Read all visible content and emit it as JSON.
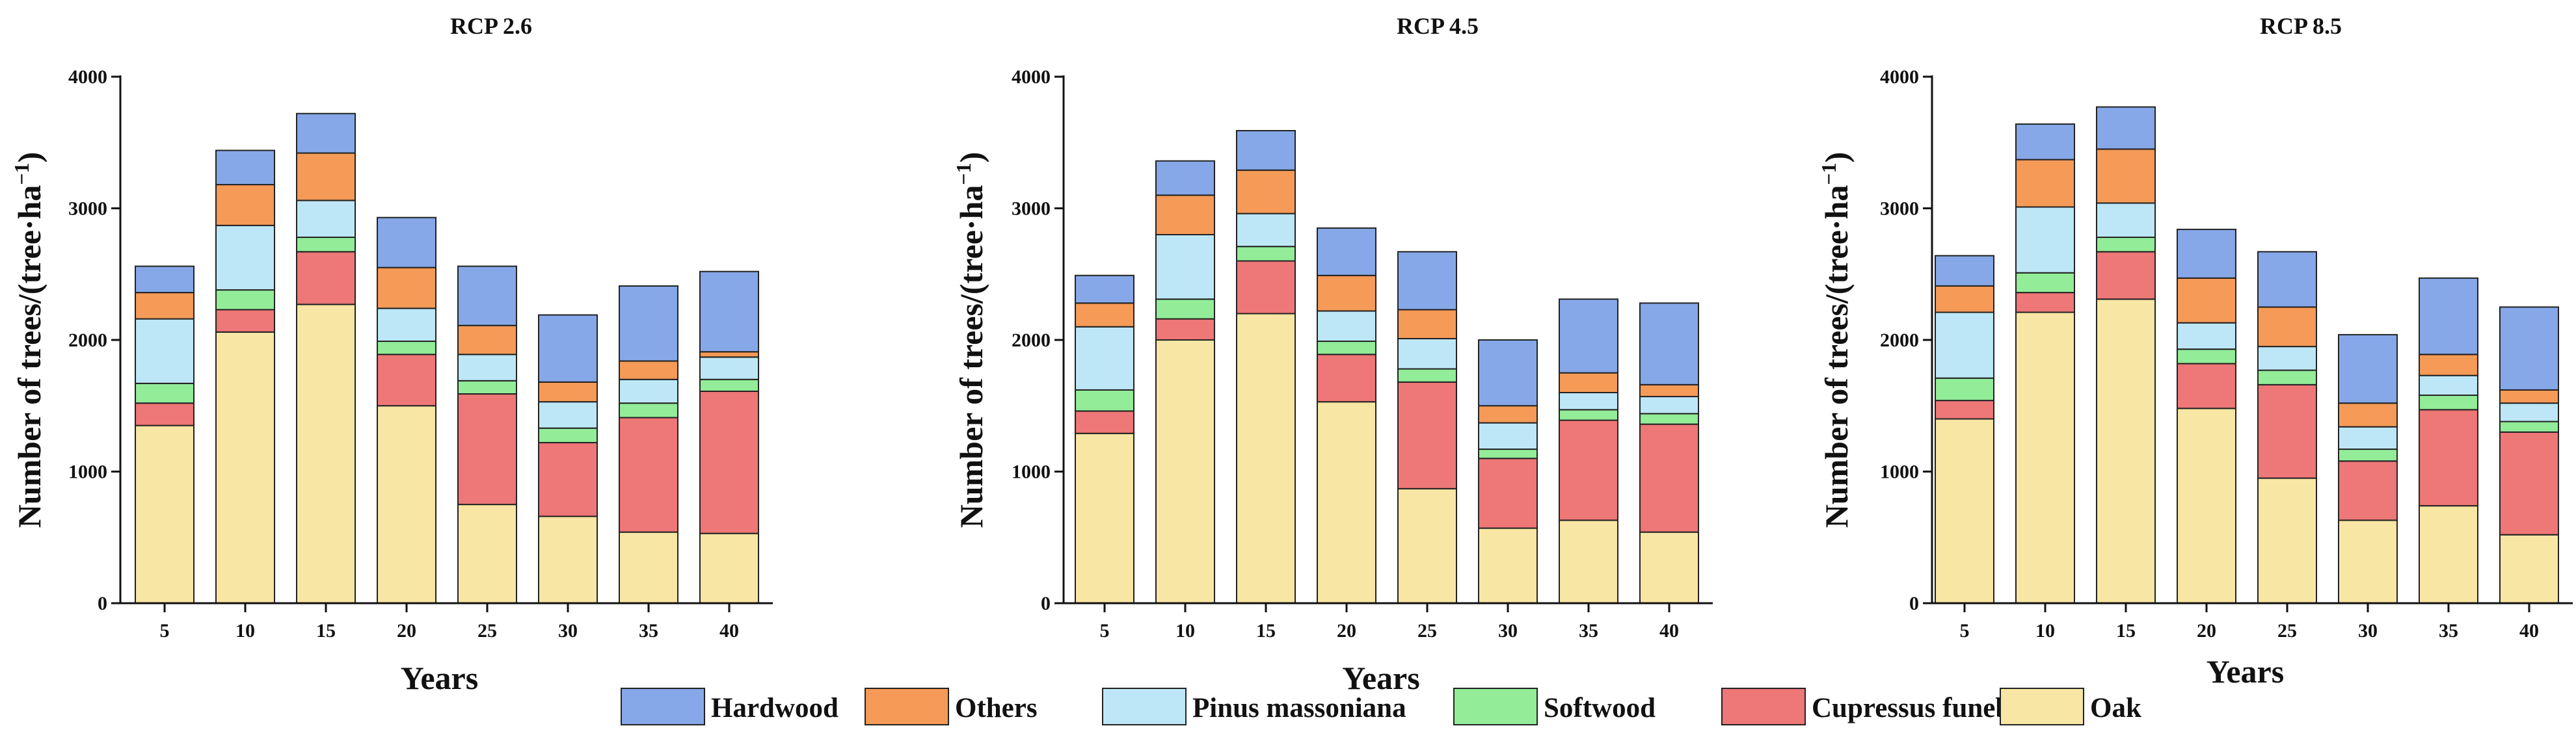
{
  "chart_data": {
    "type": "bar",
    "stacked": true,
    "categories": [
      "5",
      "10",
      "15",
      "20",
      "25",
      "30",
      "35",
      "40"
    ],
    "xlabel": "Years",
    "ylabel": "Number of trees/(tree·ha",
    "ylabel_superscript": "−1",
    "ylabel_suffix": ")",
    "ylim": [
      0,
      4000
    ],
    "yticks": [
      "0",
      "1000",
      "2000",
      "3000",
      "4000"
    ],
    "legend": {
      "position": "bottom",
      "entries": [
        {
          "name": "Hardwood",
          "color": "#86A8E8"
        },
        {
          "name": "Others",
          "color": "#F59A57"
        },
        {
          "name": "Pinus massoniana",
          "color": "#BDE7F6"
        },
        {
          "name": "Softwood",
          "color": "#92EC98"
        },
        {
          "name": "Cupressus funebris",
          "color": "#EE7777"
        },
        {
          "name": "Oak",
          "color": "#F8E6A4"
        }
      ]
    },
    "panels": [
      {
        "title": "RCP 2.6",
        "series": [
          {
            "name": "Oak",
            "color": "#F8E6A4",
            "values": [
              1350,
              2060,
              2270,
              1500,
              750,
              660,
              540,
              530
            ]
          },
          {
            "name": "Cupressus funebris",
            "color": "#EE7777",
            "values": [
              170,
              170,
              400,
              390,
              840,
              560,
              870,
              1080
            ]
          },
          {
            "name": "Softwood",
            "color": "#92EC98",
            "values": [
              150,
              150,
              110,
              100,
              100,
              110,
              110,
              90
            ]
          },
          {
            "name": "Pinus massoniana",
            "color": "#BDE7F6",
            "values": [
              490,
              490,
              280,
              250,
              200,
              200,
              180,
              170
            ]
          },
          {
            "name": "Others",
            "color": "#F59A57",
            "values": [
              200,
              310,
              360,
              310,
              220,
              150,
              140,
              40
            ]
          },
          {
            "name": "Hardwood",
            "color": "#86A8E8",
            "values": [
              200,
              260,
              300,
              380,
              450,
              510,
              570,
              610
            ]
          }
        ]
      },
      {
        "title": "RCP 4.5",
        "series": [
          {
            "name": "Oak",
            "color": "#F8E6A4",
            "values": [
              1290,
              2000,
              2200,
              1530,
              870,
              570,
              630,
              540
            ]
          },
          {
            "name": "Cupressus funebris",
            "color": "#EE7777",
            "values": [
              170,
              160,
              400,
              360,
              810,
              530,
              760,
              820
            ]
          },
          {
            "name": "Softwood",
            "color": "#92EC98",
            "values": [
              160,
              150,
              110,
              100,
              100,
              70,
              80,
              80
            ]
          },
          {
            "name": "Pinus massoniana",
            "color": "#BDE7F6",
            "values": [
              480,
              490,
              250,
              230,
              230,
              200,
              130,
              130
            ]
          },
          {
            "name": "Others",
            "color": "#F59A57",
            "values": [
              180,
              300,
              330,
              270,
              220,
              130,
              150,
              90
            ]
          },
          {
            "name": "Hardwood",
            "color": "#86A8E8",
            "values": [
              210,
              260,
              300,
              360,
              440,
              500,
              560,
              620
            ]
          }
        ]
      },
      {
        "title": "RCP 8.5",
        "series": [
          {
            "name": "Oak",
            "color": "#F8E6A4",
            "values": [
              1400,
              2210,
              2310,
              1480,
              950,
              630,
              740,
              520
            ]
          },
          {
            "name": "Cupressus funebris",
            "color": "#EE7777",
            "values": [
              140,
              150,
              360,
              340,
              710,
              450,
              730,
              780
            ]
          },
          {
            "name": "Softwood",
            "color": "#92EC98",
            "values": [
              170,
              150,
              110,
              110,
              110,
              90,
              110,
              80
            ]
          },
          {
            "name": "Pinus massoniana",
            "color": "#BDE7F6",
            "values": [
              500,
              500,
              260,
              200,
              180,
              170,
              150,
              140
            ]
          },
          {
            "name": "Others",
            "color": "#F59A57",
            "values": [
              200,
              360,
              410,
              340,
              300,
              180,
              160,
              100
            ]
          },
          {
            "name": "Hardwood",
            "color": "#86A8E8",
            "values": [
              230,
              270,
              320,
              370,
              420,
              520,
              580,
              630
            ]
          }
        ]
      }
    ]
  }
}
